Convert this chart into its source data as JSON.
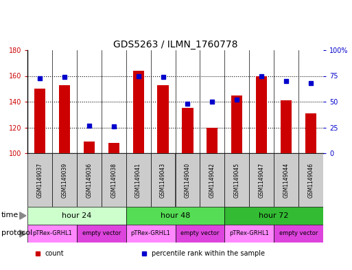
{
  "title": "GDS5263 / ILMN_1760778",
  "samples": [
    "GSM1149037",
    "GSM1149039",
    "GSM1149036",
    "GSM1149038",
    "GSM1149041",
    "GSM1149043",
    "GSM1149040",
    "GSM1149042",
    "GSM1149045",
    "GSM1149047",
    "GSM1149044",
    "GSM1149046"
  ],
  "counts": [
    150,
    153,
    109,
    108,
    164,
    153,
    135,
    120,
    145,
    160,
    141,
    131
  ],
  "percentile_ranks": [
    73,
    74,
    27,
    26,
    75,
    74,
    48,
    50,
    52,
    75,
    70,
    68
  ],
  "ylim_left": [
    100,
    180
  ],
  "ylim_right": [
    0,
    100
  ],
  "yticks_left": [
    100,
    120,
    140,
    160,
    180
  ],
  "yticks_right": [
    0,
    25,
    50,
    75,
    100
  ],
  "yticklabels_right": [
    "0",
    "25",
    "50",
    "75",
    "100%"
  ],
  "bar_color": "#cc0000",
  "dot_color": "#0000cc",
  "time_groups": [
    {
      "label": "hour 24",
      "start": 0,
      "end": 4,
      "color": "#ccffcc"
    },
    {
      "label": "hour 48",
      "start": 4,
      "end": 8,
      "color": "#55dd55"
    },
    {
      "label": "hour 72",
      "start": 8,
      "end": 12,
      "color": "#33bb33"
    }
  ],
  "protocol_groups": [
    {
      "label": "pTRex-GRHL1",
      "start": 0,
      "end": 2,
      "color": "#ff88ff"
    },
    {
      "label": "empty vector",
      "start": 2,
      "end": 4,
      "color": "#dd44dd"
    },
    {
      "label": "pTRex-GRHL1",
      "start": 4,
      "end": 6,
      "color": "#ff88ff"
    },
    {
      "label": "empty vector",
      "start": 6,
      "end": 8,
      "color": "#dd44dd"
    },
    {
      "label": "pTRex-GRHL1",
      "start": 8,
      "end": 10,
      "color": "#ff88ff"
    },
    {
      "label": "empty vector",
      "start": 10,
      "end": 12,
      "color": "#dd44dd"
    }
  ],
  "bar_width": 0.45,
  "bg_color": "#ffffff",
  "label_color_left": "#cc0000",
  "label_color_right": "#0000cc",
  "sample_bg_color": "#cccccc",
  "legend_items": [
    {
      "label": "count",
      "color": "#cc0000"
    },
    {
      "label": "percentile rank within the sample",
      "color": "#0000cc"
    }
  ]
}
